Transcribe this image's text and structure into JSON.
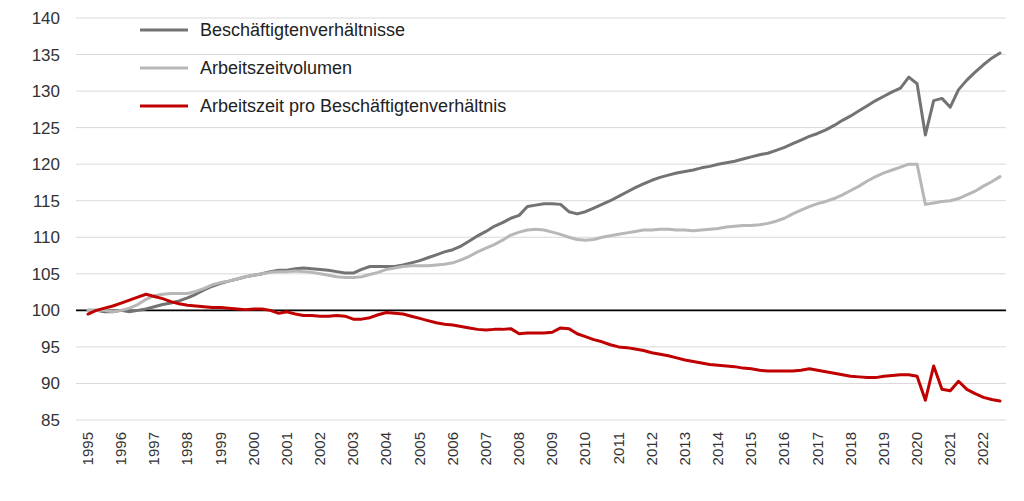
{
  "chart_data": {
    "type": "line",
    "categories": [
      "1995",
      null,
      null,
      null,
      "1996",
      null,
      null,
      null,
      "1997",
      null,
      null,
      null,
      "1998",
      null,
      null,
      null,
      "1999",
      null,
      null,
      null,
      "2000",
      null,
      null,
      null,
      "2001",
      null,
      null,
      null,
      "2002",
      null,
      null,
      null,
      "2003",
      null,
      null,
      null,
      "2004",
      null,
      null,
      null,
      "2005",
      null,
      null,
      null,
      "2006",
      null,
      null,
      null,
      "2007",
      null,
      null,
      null,
      "2008",
      null,
      null,
      null,
      "2009",
      null,
      null,
      null,
      "2010",
      null,
      null,
      null,
      "2011",
      null,
      null,
      null,
      "2012",
      null,
      null,
      null,
      "2013",
      null,
      null,
      null,
      "2014",
      null,
      null,
      null,
      "2015",
      null,
      null,
      null,
      "2016",
      null,
      null,
      null,
      "2017",
      null,
      null,
      null,
      "2018",
      null,
      null,
      null,
      "2019",
      null,
      null,
      null,
      "2020",
      null,
      null,
      null,
      "2021",
      null,
      null,
      null,
      "2022",
      null,
      null
    ],
    "series": [
      {
        "name": "Beschäftigtenverhältnisse",
        "color": "#737373",
        "values": [
          100,
          100,
          99.8,
          99.8,
          100,
          99.8,
          100,
          100.2,
          100.5,
          100.8,
          101,
          101.3,
          101.7,
          102.2,
          102.8,
          103.3,
          103.7,
          104,
          104.3,
          104.6,
          104.8,
          105,
          105.3,
          105.5,
          105.5,
          105.7,
          105.8,
          105.7,
          105.6,
          105.5,
          105.3,
          105.1,
          105.1,
          105.6,
          106,
          106,
          106,
          106,
          106.2,
          106.5,
          106.8,
          107.2,
          107.6,
          108,
          108.3,
          108.8,
          109.5,
          110.2,
          110.8,
          111.5,
          112,
          112.6,
          113,
          114.2,
          114.4,
          114.6,
          114.6,
          114.5,
          113.5,
          113.2,
          113.5,
          114,
          114.5,
          115,
          115.6,
          116.2,
          116.8,
          117.3,
          117.8,
          118.2,
          118.5,
          118.8,
          119,
          119.2,
          119.5,
          119.7,
          120,
          120.2,
          120.4,
          120.7,
          121,
          121.3,
          121.5,
          121.9,
          122.3,
          122.8,
          123.3,
          123.8,
          124.2,
          124.7,
          125.3,
          126,
          126.6,
          127.3,
          128,
          128.7,
          129.3,
          129.9,
          130.4,
          131.9,
          131,
          124,
          128.7,
          129,
          127.8,
          130.2,
          131.5,
          132.6,
          133.6,
          134.5,
          135.2
        ]
      },
      {
        "name": "Arbeitszeitvolumen",
        "color": "#b7b7b7",
        "values": [
          100,
          100,
          100,
          99.8,
          100,
          100.3,
          100.8,
          101.5,
          102,
          102.2,
          102.3,
          102.3,
          102.3,
          102.6,
          103,
          103.5,
          103.8,
          104,
          104.3,
          104.6,
          104.8,
          105,
          105.2,
          105.3,
          105.3,
          105.4,
          105.3,
          105.2,
          105,
          104.8,
          104.6,
          104.5,
          104.5,
          104.6,
          104.9,
          105.2,
          105.6,
          105.8,
          106,
          106.1,
          106.1,
          106.1,
          106.2,
          106.3,
          106.5,
          106.9,
          107.4,
          108,
          108.5,
          109,
          109.6,
          110.3,
          110.7,
          111,
          111.1,
          111,
          110.7,
          110.4,
          110,
          109.7,
          109.6,
          109.7,
          110,
          110.2,
          110.4,
          110.6,
          110.8,
          111,
          111,
          111.1,
          111.1,
          111,
          111,
          110.9,
          111,
          111.1,
          111.2,
          111.4,
          111.5,
          111.6,
          111.6,
          111.7,
          111.9,
          112.2,
          112.6,
          113.2,
          113.7,
          114.2,
          114.6,
          114.9,
          115.3,
          115.8,
          116.4,
          117,
          117.7,
          118.3,
          118.8,
          119.2,
          119.6,
          120,
          120,
          114.5,
          114.7,
          114.9,
          115,
          115.3,
          115.8,
          116.3,
          117,
          117.6,
          118.3
        ]
      },
      {
        "name": "Arbeitszeit pro Beschäftigtenverhältnis",
        "color": "#c00000",
        "values": [
          99.5,
          100,
          100.3,
          100.6,
          101,
          101.4,
          101.8,
          102.2,
          101.9,
          101.6,
          101.2,
          100.9,
          100.7,
          100.6,
          100.5,
          100.4,
          100.4,
          100.3,
          100.2,
          100.1,
          100.2,
          100.2,
          100,
          99.6,
          99.8,
          99.5,
          99.3,
          99.3,
          99.2,
          99.2,
          99.3,
          99.2,
          98.8,
          98.8,
          99,
          99.4,
          99.7,
          99.6,
          99.5,
          99.2,
          98.9,
          98.6,
          98.3,
          98.1,
          98,
          97.8,
          97.6,
          97.4,
          97.3,
          97.4,
          97.4,
          97.5,
          96.8,
          96.9,
          96.9,
          96.9,
          97,
          97.6,
          97.5,
          96.8,
          96.4,
          96,
          95.7,
          95.3,
          95,
          94.9,
          94.7,
          94.5,
          94.2,
          94,
          93.8,
          93.5,
          93.2,
          93,
          92.8,
          92.6,
          92.5,
          92.4,
          92.3,
          92.1,
          92,
          91.8,
          91.7,
          91.7,
          91.7,
          91.7,
          91.8,
          92,
          91.8,
          91.6,
          91.4,
          91.2,
          91,
          90.9,
          90.8,
          90.8,
          91,
          91.1,
          91.2,
          91.2,
          91,
          87.7,
          92.4,
          89.2,
          89,
          90.3,
          89.2,
          88.6,
          88.1,
          87.8,
          87.6
        ]
      }
    ],
    "ylim": [
      85,
      140
    ],
    "yticks": [
      85,
      90,
      95,
      100,
      105,
      110,
      115,
      120,
      125,
      130,
      135,
      140
    ],
    "baseline": 100,
    "grid": true,
    "legend": "top-left"
  }
}
